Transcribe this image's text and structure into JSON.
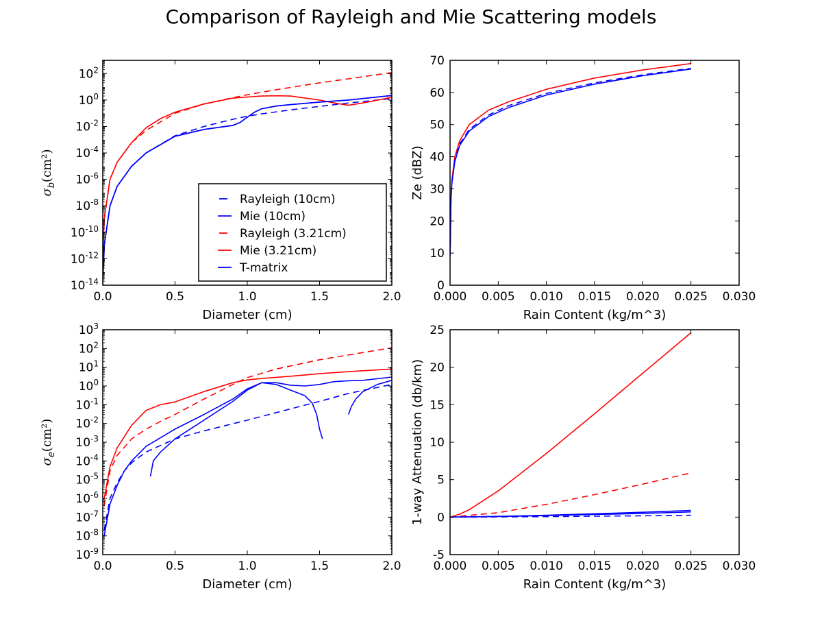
{
  "figure": {
    "title": "Comparison of Rayleigh and Mie Scattering models"
  },
  "legend_entries": [
    {
      "label": "Rayleigh (10cm)",
      "color": "#0000ff",
      "dash": true
    },
    {
      "label": "Mie (10cm)",
      "color": "#0000ff",
      "dash": false
    },
    {
      "label": "Rayleigh (3.21cm)",
      "color": "#ff0000",
      "dash": true
    },
    {
      "label": "Mie (3.21cm)",
      "color": "#ff0000",
      "dash": false
    },
    {
      "label": "T-matrix",
      "color": "#0000ff",
      "dash": false
    }
  ],
  "chart_data": [
    {
      "type": "line",
      "position": "top-left",
      "xlabel": "Diameter (cm)",
      "ylabel": "σ_b(cm²)",
      "ylabel_main": "σ",
      "ylabel_sub": "b",
      "ylabel_rest": "(cm²)",
      "xlim": [
        0.0,
        2.0
      ],
      "ylim": [
        1e-14,
        1000
      ],
      "yscale": "log",
      "xticks": [
        "0.0",
        "0.5",
        "1.0",
        "1.5",
        "2.0"
      ],
      "yticks": [
        {
          "base": "10",
          "exp": "-14",
          "value": 1e-14
        },
        {
          "base": "10",
          "exp": "-12",
          "value": 1e-12
        },
        {
          "base": "10",
          "exp": "-10",
          "value": 1e-10
        },
        {
          "base": "10",
          "exp": "-8",
          "value": 1e-08
        },
        {
          "base": "10",
          "exp": "-6",
          "value": 1e-06
        },
        {
          "base": "10",
          "exp": "-4",
          "value": 0.0001
        },
        {
          "base": "10",
          "exp": "-2",
          "value": 0.01
        },
        {
          "base": "10",
          "exp": "0",
          "value": 1
        },
        {
          "base": "10",
          "exp": "2",
          "value": 100
        }
      ],
      "legend": "lower-right",
      "series": [
        {
          "name": "Rayleigh (10cm)",
          "color": "#0000ff",
          "dash": true,
          "x": [
            0.0,
            0.01,
            0.05,
            0.1,
            0.2,
            0.3,
            0.5,
            0.7,
            0.9,
            1.0,
            1.1,
            1.3,
            1.5,
            1.7,
            2.0
          ],
          "y": [
            1e-14,
            1e-11,
            1e-08,
            3e-07,
            1e-05,
            0.0001,
            0.002,
            0.01,
            0.035,
            0.06,
            0.09,
            0.18,
            0.33,
            0.6,
            1.3
          ]
        },
        {
          "name": "Mie (10cm)",
          "color": "#0000ff",
          "dash": false,
          "x": [
            0.0,
            0.01,
            0.05,
            0.1,
            0.2,
            0.3,
            0.5,
            0.7,
            0.9,
            0.95,
            1.0,
            1.05,
            1.1,
            1.2,
            1.3,
            1.5,
            1.7,
            2.0
          ],
          "y": [
            1e-14,
            1e-11,
            1e-08,
            3e-07,
            1e-05,
            0.0001,
            0.0018,
            0.006,
            0.012,
            0.02,
            0.05,
            0.12,
            0.22,
            0.35,
            0.45,
            0.7,
            1.0,
            2.2
          ]
        },
        {
          "name": "Rayleigh (3.21cm)",
          "color": "#ff0000",
          "dash": true,
          "x": [
            0.0,
            0.01,
            0.05,
            0.1,
            0.2,
            0.3,
            0.5,
            0.7,
            0.9,
            1.0,
            1.2,
            1.5,
            1.7,
            2.0
          ],
          "y": [
            1e-12,
            1e-09,
            1e-06,
            2e-05,
            0.0006,
            0.005,
            0.1,
            0.5,
            1.5,
            2.5,
            6,
            20,
            40,
            120
          ]
        },
        {
          "name": "Mie (3.21cm)",
          "color": "#ff0000",
          "dash": false,
          "x": [
            0.0,
            0.01,
            0.05,
            0.1,
            0.2,
            0.3,
            0.4,
            0.5,
            0.7,
            0.9,
            1.1,
            1.2,
            1.3,
            1.5,
            1.6,
            1.7,
            1.8,
            2.0
          ],
          "y": [
            1e-12,
            1e-09,
            1e-06,
            2e-05,
            0.0006,
            0.008,
            0.04,
            0.12,
            0.5,
            1.4,
            2.0,
            2.1,
            2.0,
            1.0,
            0.6,
            0.4,
            0.6,
            1.6
          ]
        },
        {
          "name": "T-matrix",
          "color": "#0000ff",
          "dash": false,
          "x": [
            0.0,
            0.01,
            0.05,
            0.1,
            0.2,
            0.3,
            0.5,
            0.7,
            0.9,
            0.95,
            1.0,
            1.05,
            1.1,
            1.2,
            1.3,
            1.5,
            1.7,
            2.0
          ],
          "y": [
            1e-14,
            1e-11,
            1e-08,
            3e-07,
            1e-05,
            0.0001,
            0.0018,
            0.006,
            0.012,
            0.02,
            0.05,
            0.12,
            0.22,
            0.35,
            0.45,
            0.7,
            1.0,
            2.2
          ]
        }
      ]
    },
    {
      "type": "line",
      "position": "top-right",
      "xlabel": "Rain Content (kg/m^3)",
      "ylabel": "Ze (dBZ)",
      "xlim": [
        0.0,
        0.03
      ],
      "ylim": [
        0,
        70
      ],
      "yscale": "linear",
      "xticks": [
        "0.000",
        "0.005",
        "0.010",
        "0.015",
        "0.020",
        "0.025",
        "0.030"
      ],
      "yticks": [
        "0",
        "10",
        "20",
        "30",
        "40",
        "50",
        "60",
        "70"
      ],
      "series": [
        {
          "name": "Mie (3.21cm)",
          "color": "#ff0000",
          "dash": false,
          "x": [
            1e-05,
            0.0001,
            0.0002,
            0.0005,
            0.001,
            0.002,
            0.004,
            0.006,
            0.01,
            0.015,
            0.02,
            0.025
          ],
          "y": [
            10,
            28,
            33,
            40,
            45,
            50,
            54.5,
            57,
            61,
            64.5,
            67,
            69
          ]
        },
        {
          "name": "Rayleigh (10cm)",
          "color": "#0000ff",
          "dash": true,
          "x": [
            1e-05,
            0.0001,
            0.0002,
            0.0005,
            0.001,
            0.002,
            0.004,
            0.006,
            0.01,
            0.015,
            0.02,
            0.025
          ],
          "y": [
            9,
            27,
            32,
            39,
            44,
            48.5,
            53,
            55.8,
            59.7,
            63,
            65.5,
            67.5
          ]
        },
        {
          "name": "Mie (10cm)",
          "color": "#0000ff",
          "dash": false,
          "x": [
            1e-05,
            0.0001,
            0.0002,
            0.0005,
            0.001,
            0.002,
            0.004,
            0.006,
            0.01,
            0.015,
            0.02,
            0.025
          ],
          "y": [
            9,
            27,
            32,
            38.5,
            43.5,
            48,
            52.5,
            55.2,
            59.2,
            62.6,
            65.2,
            67.3
          ]
        }
      ]
    },
    {
      "type": "line",
      "position": "bottom-left",
      "xlabel": "Diameter (cm)",
      "ylabel": "σ_e(cm²)",
      "ylabel_main": "σ",
      "ylabel_sub": "e",
      "ylabel_rest": "(cm²)",
      "xlim": [
        0.0,
        2.0
      ],
      "ylim": [
        1e-09,
        1000
      ],
      "yscale": "log",
      "xticks": [
        "0.0",
        "0.5",
        "1.0",
        "1.5",
        "2.0"
      ],
      "yticks": [
        {
          "base": "10",
          "exp": "-9",
          "value": 1e-09
        },
        {
          "base": "10",
          "exp": "-8",
          "value": 1e-08
        },
        {
          "base": "10",
          "exp": "-7",
          "value": 1e-07
        },
        {
          "base": "10",
          "exp": "-6",
          "value": 1e-06
        },
        {
          "base": "10",
          "exp": "-5",
          "value": 1e-05
        },
        {
          "base": "10",
          "exp": "-4",
          "value": 0.0001
        },
        {
          "base": "10",
          "exp": "-3",
          "value": 0.001
        },
        {
          "base": "10",
          "exp": "-2",
          "value": 0.01
        },
        {
          "base": "10",
          "exp": "-1",
          "value": 0.1
        },
        {
          "base": "10",
          "exp": "0",
          "value": 1
        },
        {
          "base": "10",
          "exp": "1",
          "value": 10
        },
        {
          "base": "10",
          "exp": "2",
          "value": 100
        },
        {
          "base": "10",
          "exp": "3",
          "value": 1000
        }
      ],
      "series": [
        {
          "name": "Rayleigh (10cm)",
          "color": "#0000ff",
          "dash": true,
          "x": [
            0.01,
            0.05,
            0.1,
            0.15,
            0.2,
            0.3,
            0.5,
            0.7,
            1.0,
            1.3,
            1.5,
            1.7,
            2.0
          ],
          "y": [
            2e-08,
            1e-06,
            7e-06,
            3e-05,
            8e-05,
            0.0003,
            0.0015,
            0.004,
            0.015,
            0.06,
            0.15,
            0.4,
            1.2
          ]
        },
        {
          "name": "Mie (10cm)",
          "color": "#0000ff",
          "dash": false,
          "x": [
            0.01,
            0.05,
            0.1,
            0.15,
            0.2,
            0.3,
            0.5,
            0.7,
            0.9,
            1.0,
            1.1,
            1.2,
            1.3,
            1.4,
            1.5,
            1.6,
            1.7,
            1.8,
            2.0
          ],
          "y": [
            1e-08,
            5e-07,
            5e-06,
            3e-05,
            0.0001,
            0.0006,
            0.005,
            0.03,
            0.2,
            0.7,
            1.5,
            1.5,
            1.1,
            1.0,
            1.2,
            1.7,
            1.9,
            2.0,
            3.0
          ]
        },
        {
          "name": "Rayleigh (3.21cm)",
          "color": "#ff0000",
          "dash": true,
          "x": [
            0.01,
            0.05,
            0.1,
            0.2,
            0.3,
            0.4,
            0.5,
            0.7,
            0.9,
            1.0,
            1.2,
            1.5,
            1.7,
            2.0
          ],
          "y": [
            4e-07,
            3e-05,
            0.0002,
            0.0015,
            0.005,
            0.013,
            0.03,
            0.2,
            1.2,
            2.8,
            8,
            25,
            45,
            110
          ]
        },
        {
          "name": "Mie (3.21cm)",
          "color": "#ff0000",
          "dash": false,
          "x": [
            0.01,
            0.05,
            0.1,
            0.2,
            0.3,
            0.4,
            0.5,
            0.7,
            0.9,
            1.0,
            1.1,
            1.3,
            1.5,
            1.7,
            2.0
          ],
          "y": [
            1e-06,
            5e-05,
            0.0005,
            0.008,
            0.05,
            0.1,
            0.14,
            0.5,
            1.5,
            2.1,
            2.5,
            3.3,
            4.5,
            5.8,
            8
          ]
        },
        {
          "name": "T-matrix",
          "color": "#0000ff",
          "dash": false,
          "segments": [
            {
              "x": [
                0.33,
                0.35,
                0.4,
                0.5,
                0.7,
                0.9,
                1.0,
                1.1,
                1.2,
                1.3,
                1.4,
                1.45,
                1.48,
                1.5,
                1.52
              ],
              "y": [
                1.5e-05,
                0.0001,
                0.0003,
                0.0015,
                0.015,
                0.15,
                0.6,
                1.5,
                1.2,
                0.6,
                0.3,
                0.12,
                0.03,
                0.005,
                0.0015
              ]
            },
            {
              "x": [
                1.7,
                1.72,
                1.75,
                1.8,
                1.9,
                2.0
              ],
              "y": [
                0.03,
                0.08,
                0.2,
                0.5,
                1.2,
                2.0
              ]
            }
          ]
        }
      ]
    },
    {
      "type": "line",
      "position": "bottom-right",
      "xlabel": "Rain Content (kg/m^3)",
      "ylabel": "1-way Attenuation (db/km)",
      "xlim": [
        0.0,
        0.03
      ],
      "ylim": [
        -5,
        25
      ],
      "yscale": "linear",
      "xticks": [
        "0.000",
        "0.005",
        "0.010",
        "0.015",
        "0.020",
        "0.025",
        "0.030"
      ],
      "yticks": [
        "-5",
        "0",
        "5",
        "10",
        "15",
        "20",
        "25"
      ],
      "series": [
        {
          "name": "Mie (3.21cm)",
          "color": "#ff0000",
          "dash": false,
          "x": [
            0.0,
            0.001,
            0.002,
            0.005,
            0.01,
            0.015,
            0.02,
            0.025
          ],
          "y": [
            0,
            0.4,
            1.0,
            3.5,
            8.5,
            13.8,
            19.2,
            24.6
          ]
        },
        {
          "name": "Rayleigh (3.21cm)",
          "color": "#ff0000",
          "dash": true,
          "x": [
            0.0,
            0.005,
            0.01,
            0.015,
            0.02,
            0.025
          ],
          "y": [
            0,
            0.6,
            1.7,
            3.0,
            4.4,
            5.9
          ]
        },
        {
          "name": "Mie (10cm)",
          "color": "#0000ff",
          "dash": false,
          "x": [
            0.0,
            0.005,
            0.01,
            0.015,
            0.02,
            0.025
          ],
          "y": [
            0,
            0.1,
            0.25,
            0.45,
            0.65,
            0.9
          ]
        },
        {
          "name": "T-matrix",
          "color": "#0000ff",
          "dash": false,
          "x": [
            0.0,
            0.005,
            0.01,
            0.015,
            0.02,
            0.025
          ],
          "y": [
            0,
            0.08,
            0.2,
            0.35,
            0.5,
            0.7
          ]
        },
        {
          "name": "Rayleigh (10cm)",
          "color": "#0000ff",
          "dash": true,
          "x": [
            0.0,
            0.005,
            0.01,
            0.015,
            0.02,
            0.025
          ],
          "y": [
            0,
            0.03,
            0.07,
            0.12,
            0.18,
            0.25
          ]
        }
      ]
    }
  ]
}
